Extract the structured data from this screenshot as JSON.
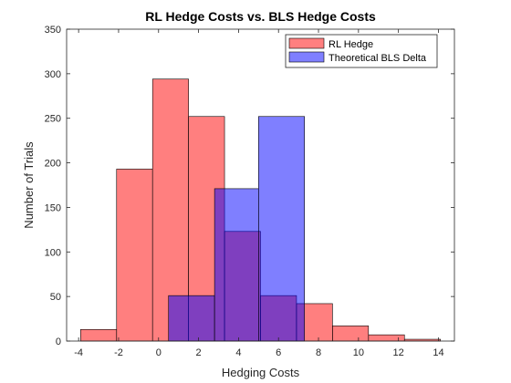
{
  "chart_data": {
    "type": "bar",
    "title": "RL Hedge Costs vs. BLS Hedge Costs",
    "xlabel": "Hedging Costs",
    "ylabel": "Number of Trials",
    "xlim": [
      -4.6,
      14.8
    ],
    "ylim": [
      0,
      350
    ],
    "xticks": [
      -4,
      -2,
      0,
      2,
      4,
      6,
      8,
      10,
      12,
      14
    ],
    "yticks": [
      0,
      50,
      100,
      150,
      200,
      250,
      300,
      350
    ],
    "legend_position": "top-right",
    "grid": false,
    "series": [
      {
        "name": "RL Hedge",
        "color": "#ff0000",
        "opacity": 0.5,
        "bins": [
          {
            "x0": -3.9,
            "x1": -2.1,
            "value": 13
          },
          {
            "x0": -2.1,
            "x1": -0.3,
            "value": 193
          },
          {
            "x0": -0.3,
            "x1": 1.5,
            "value": 294
          },
          {
            "x0": 1.5,
            "x1": 3.3,
            "value": 252
          },
          {
            "x0": 3.3,
            "x1": 5.1,
            "value": 123
          },
          {
            "x0": 5.1,
            "x1": 6.9,
            "value": 51
          },
          {
            "x0": 6.9,
            "x1": 8.7,
            "value": 42
          },
          {
            "x0": 8.7,
            "x1": 10.5,
            "value": 17
          },
          {
            "x0": 10.5,
            "x1": 12.3,
            "value": 7
          },
          {
            "x0": 12.3,
            "x1": 14.1,
            "value": 2
          }
        ]
      },
      {
        "name": "Theoretical BLS Delta",
        "color": "#0000ff",
        "opacity": 0.5,
        "bins": [
          {
            "x0": 0.5,
            "x1": 2.8,
            "value": 51
          },
          {
            "x0": 2.8,
            "x1": 5.0,
            "value": 171
          },
          {
            "x0": 5.0,
            "x1": 7.3,
            "value": 252
          }
        ]
      }
    ]
  }
}
